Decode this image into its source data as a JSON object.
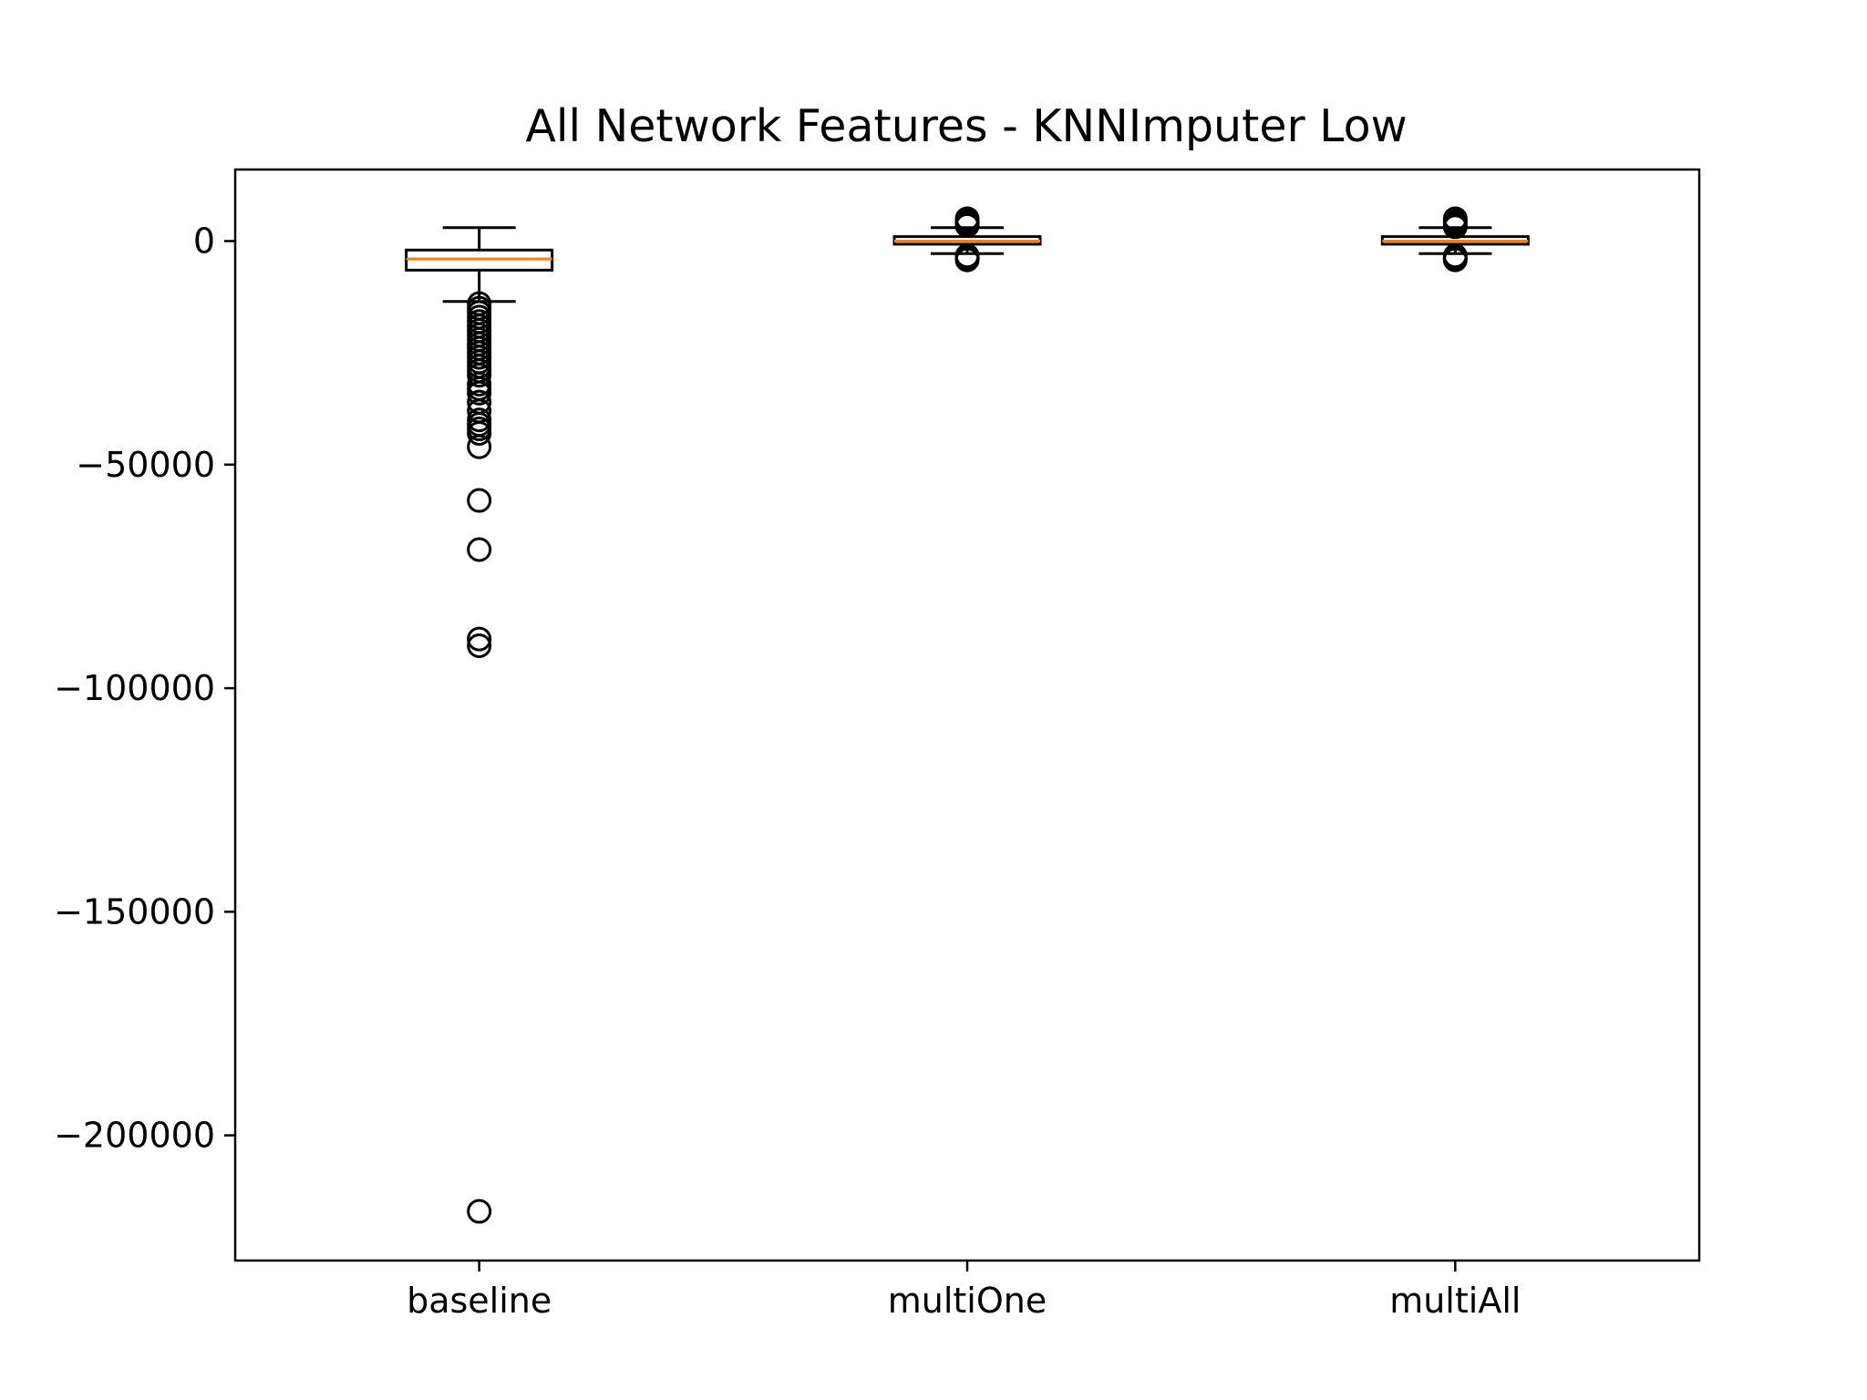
{
  "chart_data": {
    "type": "box",
    "title": "All Network Features - KNNImputer Low",
    "xlabel": "",
    "ylabel": "",
    "categories": [
      "baseline",
      "multiOne",
      "multiAll"
    ],
    "ylim": [
      -228000,
      16000
    ],
    "yticks": [
      0,
      -50000,
      -100000,
      -150000,
      -200000
    ],
    "ytick_labels": [
      "0",
      "−50000",
      "−100000",
      "−150000",
      "−200000"
    ],
    "grid": false,
    "boxes": [
      {
        "name": "baseline",
        "whisker_high": 3000,
        "q3": -2000,
        "median": -4000,
        "q1": -6500,
        "whisker_low": -13500,
        "outliers": [
          -14000,
          -15000,
          -16000,
          -17000,
          -18000,
          -19000,
          -20000,
          -21000,
          -22000,
          -23000,
          -24000,
          -25000,
          -26000,
          -27000,
          -28000,
          -29000,
          -30000,
          -32000,
          -33000,
          -34000,
          -36000,
          -38000,
          -40000,
          -41000,
          -42000,
          -43000,
          -46000,
          -58000,
          -69000,
          -89000,
          -90500,
          -217000
        ]
      },
      {
        "name": "multiOne",
        "whisker_high": 3000,
        "q3": 1000,
        "median": 0,
        "q1": -700,
        "whisker_low": -2800,
        "outliers": [
          5000,
          4500,
          4000,
          3500,
          -3300,
          -3800,
          -4200
        ]
      },
      {
        "name": "multiAll",
        "whisker_high": 3000,
        "q3": 1000,
        "median": 0,
        "q1": -700,
        "whisker_low": -2800,
        "outliers": [
          5000,
          4500,
          4000,
          3500,
          3200,
          -3300,
          -3800,
          -4200
        ]
      }
    ],
    "colors": {
      "box": "#000000",
      "median": "#ff7f0e",
      "outlier": "#000000",
      "background": "#ffffff"
    }
  }
}
